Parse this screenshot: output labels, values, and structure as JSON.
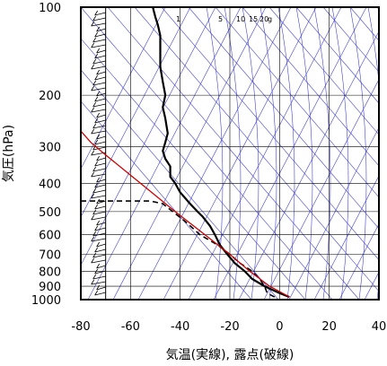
{
  "chart_data": {
    "type": "line",
    "xlabel": "気温(実線), 露点(破線)",
    "ylabel": "気圧(hPa)",
    "x_range": [
      -80,
      40
    ],
    "y_range": [
      1000,
      100
    ],
    "y_scale": "log",
    "x_ticks": [
      -80,
      -60,
      -40,
      -20,
      0,
      20,
      40
    ],
    "y_ticks": [
      100,
      200,
      300,
      400,
      500,
      600,
      700,
      800,
      900,
      1000
    ],
    "mixing_ratio_labels": [
      "1",
      "5",
      "10",
      "15",
      "20",
      "g"
    ],
    "series": [
      {
        "style": "solid",
        "color": "#000000",
        "points": [
          [
            4,
            980
          ],
          [
            0,
            950
          ],
          [
            -6,
            900
          ],
          [
            -11,
            850
          ],
          [
            -14,
            800
          ],
          [
            -18,
            750
          ],
          [
            -21,
            700
          ],
          [
            -24,
            650
          ],
          [
            -26,
            600
          ],
          [
            -28,
            560
          ],
          [
            -31,
            520
          ],
          [
            -33,
            500
          ],
          [
            -36,
            470
          ],
          [
            -40,
            430
          ],
          [
            -42,
            400
          ],
          [
            -44,
            380
          ],
          [
            -44,
            350
          ],
          [
            -46,
            330
          ],
          [
            -47,
            310
          ],
          [
            -46,
            290
          ],
          [
            -45,
            270
          ],
          [
            -46,
            240
          ],
          [
            -47,
            220
          ],
          [
            -46,
            200
          ],
          [
            -47,
            180
          ],
          [
            -48,
            160
          ],
          [
            -48,
            140
          ],
          [
            -48,
            125
          ],
          [
            -49,
            115
          ],
          [
            -50,
            108
          ],
          [
            -51,
            100
          ]
        ]
      },
      {
        "style": "dashed",
        "color": "#000000",
        "points": [
          [
            -2,
            980
          ],
          [
            -5,
            950
          ],
          [
            -6,
            900
          ],
          [
            -8,
            850
          ],
          [
            -11,
            800
          ],
          [
            -16,
            750
          ],
          [
            -20,
            700
          ],
          [
            -25,
            650
          ],
          [
            -32,
            600
          ],
          [
            -38,
            540
          ],
          [
            -43,
            500
          ],
          [
            -47,
            470
          ],
          [
            -52,
            460
          ],
          [
            -80,
            460
          ]
        ]
      },
      {
        "style": "solid",
        "color": "#cc0000",
        "points": [
          [
            4,
            980
          ],
          [
            -4,
            900
          ],
          [
            -12,
            800
          ],
          [
            -20,
            700
          ],
          [
            -30,
            600
          ],
          [
            -42,
            500
          ],
          [
            -56,
            400
          ],
          [
            -70,
            320
          ],
          [
            -76,
            290
          ],
          [
            -80,
            265
          ]
        ]
      }
    ],
    "background_lines": {
      "color": "#4444cc"
    },
    "wind_barbs": {
      "color": "#000000",
      "position": "left, along the x = -70 line, from 1000 hPa to 100 hPa"
    }
  }
}
